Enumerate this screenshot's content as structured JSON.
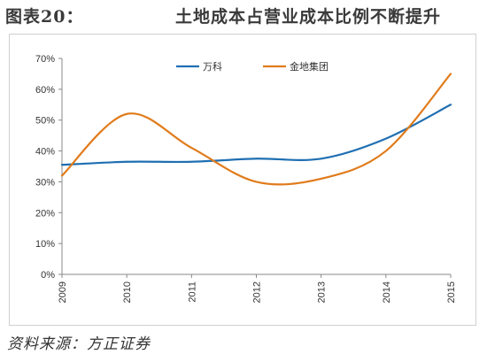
{
  "figure": {
    "label": "图表20：",
    "title": "土地成本占营业成本比例不断提升",
    "source": "资料来源：方正证券"
  },
  "chart_data": {
    "type": "line",
    "x": [
      2009,
      2010,
      2011,
      2012,
      2013,
      2014,
      2015
    ],
    "x_tick_labels": [
      "2009",
      "2010",
      "2011",
      "2012",
      "2013",
      "2014",
      "2015"
    ],
    "y_tick_labels": [
      "0%",
      "10%",
      "20%",
      "30%",
      "40%",
      "50%",
      "60%",
      "70%"
    ],
    "ylim": [
      0,
      70
    ],
    "grid": false,
    "smooth": true,
    "legend_position": "top-center",
    "series": [
      {
        "name": "万科",
        "color": "#1f6fb2",
        "values": [
          35.5,
          36.5,
          36.5,
          37.5,
          37.5,
          44,
          55
        ]
      },
      {
        "name": "金地集团",
        "color": "#e07b1a",
        "values": [
          32,
          52,
          41,
          30,
          31,
          40,
          65
        ]
      }
    ]
  }
}
